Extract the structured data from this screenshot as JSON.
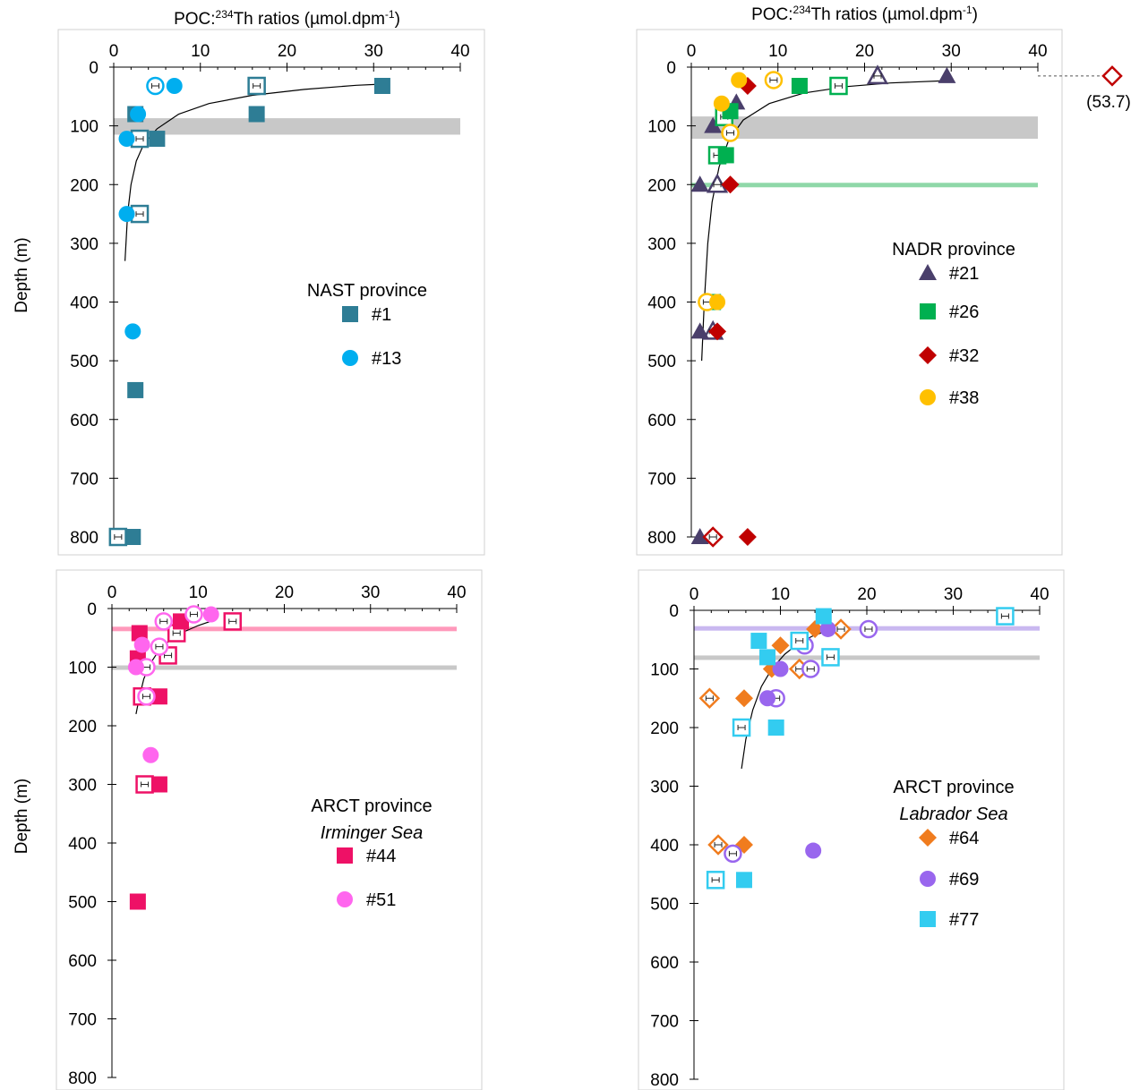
{
  "shared": {
    "ylabel": "Depth (m)",
    "xlabel_main": "POC:",
    "xlabel_sup": "234",
    "xlabel_rest": "Th  ratios (µmol.dpm",
    "xlabel_sup2": "-1",
    "xlabel_end": ")"
  },
  "chart_data": [
    {
      "type": "scatter",
      "id": "nast",
      "title_lines": [
        "NAST province"
      ],
      "show_xlabel": true,
      "show_ylabel": true,
      "xlim": [
        0,
        40
      ],
      "ylim": [
        800,
        0
      ],
      "x_ticks": [
        0,
        10,
        20,
        30,
        40
      ],
      "y_ticks": [
        0,
        100,
        200,
        300,
        400,
        500,
        600,
        700,
        800
      ],
      "bands": [
        {
          "from": 87,
          "to": 115,
          "color": "#c8c8c8"
        }
      ],
      "fit": [
        [
          1.3,
          330
        ],
        [
          1.6,
          250
        ],
        [
          2.0,
          200
        ],
        [
          2.6,
          160
        ],
        [
          3.5,
          130
        ],
        [
          5,
          105
        ],
        [
          7.5,
          80
        ],
        [
          11,
          62
        ],
        [
          16,
          48
        ],
        [
          22,
          38
        ],
        [
          28,
          31
        ],
        [
          31,
          29
        ]
      ],
      "series": [
        {
          "name": "#1",
          "marker": "square",
          "color": "#2e7d95",
          "filled": [
            [
              31,
              32
            ],
            [
              16.5,
              80
            ],
            [
              2.5,
              80
            ],
            [
              5,
              122
            ],
            [
              2.5,
              550
            ],
            [
              2.2,
              800
            ]
          ],
          "open": [
            [
              16.5,
              32
            ],
            [
              3,
              122
            ],
            [
              3,
              250
            ],
            [
              0.5,
              800
            ]
          ]
        },
        {
          "name": "#13",
          "marker": "circle",
          "color": "#00aeef",
          "filled": [
            [
              7,
              32
            ],
            [
              2.8,
              80
            ],
            [
              1.5,
              122
            ],
            [
              1.5,
              250
            ],
            [
              2.2,
              450
            ]
          ],
          "open": [
            [
              4.8,
              32
            ]
          ]
        }
      ]
    },
    {
      "type": "scatter",
      "id": "nadr",
      "title_lines": [
        "NADR province"
      ],
      "show_xlabel": true,
      "show_ylabel": false,
      "xlim": [
        0,
        40
      ],
      "ylim": [
        800,
        0
      ],
      "x_ticks": [
        0,
        10,
        20,
        30,
        40
      ],
      "y_ticks": [
        0,
        100,
        200,
        300,
        400,
        500,
        600,
        700,
        800
      ],
      "bands": [
        {
          "from": 84,
          "to": 122,
          "color": "#c8c8c8"
        },
        {
          "from": 197,
          "to": 203,
          "color": "#8fd8a8"
        }
      ],
      "fit": [
        [
          1.2,
          500
        ],
        [
          1.5,
          400
        ],
        [
          1.9,
          300
        ],
        [
          2.4,
          230
        ],
        [
          3.2,
          170
        ],
        [
          4.3,
          125
        ],
        [
          6,
          90
        ],
        [
          9,
          62
        ],
        [
          13,
          44
        ],
        [
          18,
          33
        ],
        [
          23,
          27
        ],
        [
          29.5,
          23
        ]
      ],
      "outlier": {
        "label": "(53.7)",
        "y": 15,
        "color": "#c00000"
      },
      "series": [
        {
          "name": "#21",
          "marker": "triangle",
          "color": "#4a3f6b",
          "filled": [
            [
              29.5,
              15
            ],
            [
              5.2,
              60
            ],
            [
              2.5,
              100
            ],
            [
              1,
              200
            ],
            [
              1,
              450
            ],
            [
              1,
              800
            ]
          ],
          "open": [
            [
              21.5,
              15
            ],
            [
              3,
              200
            ],
            [
              2.5,
              450
            ]
          ]
        },
        {
          "name": "#26",
          "marker": "square",
          "color": "#00b050",
          "filled": [
            [
              12.5,
              32
            ],
            [
              4.5,
              75
            ],
            [
              4,
              150
            ],
            [
              2.5,
              400
            ]
          ],
          "open": [
            [
              17,
              32
            ],
            [
              3.8,
              85
            ],
            [
              3,
              150
            ]
          ]
        },
        {
          "name": "#32",
          "marker": "diamond",
          "color": "#c00000",
          "filled": [
            [
              6.5,
              32
            ],
            [
              4.5,
              200
            ],
            [
              3,
              450
            ],
            [
              6.5,
              800
            ]
          ],
          "open": [
            [
              2.5,
              800
            ]
          ]
        },
        {
          "name": "#38",
          "marker": "circle",
          "color": "#ffc000",
          "filled": [
            [
              5.5,
              22
            ],
            [
              3.5,
              62
            ],
            [
              3,
              400
            ]
          ],
          "open": [
            [
              9.5,
              22
            ],
            [
              4.5,
              112
            ],
            [
              1.8,
              400
            ]
          ]
        }
      ]
    },
    {
      "type": "scatter",
      "id": "irminger",
      "title_lines": [
        "ARCT province",
        "Irminger Sea"
      ],
      "show_xlabel": false,
      "show_ylabel": true,
      "xlim": [
        0,
        40
      ],
      "ylim": [
        800,
        0
      ],
      "x_ticks": [
        0,
        10,
        20,
        30,
        40
      ],
      "y_ticks": [
        0,
        100,
        200,
        300,
        400,
        500,
        600,
        700,
        800
      ],
      "bands": [
        {
          "from": 31,
          "to": 37,
          "color": "#ff99bb"
        },
        {
          "from": 97,
          "to": 103,
          "color": "#c8c8c8"
        }
      ],
      "fit": [
        [
          2.8,
          180
        ],
        [
          3.2,
          150
        ],
        [
          3.7,
          120
        ],
        [
          4.4,
          95
        ],
        [
          5.3,
          75
        ],
        [
          6.5,
          57
        ],
        [
          8,
          42
        ],
        [
          10,
          29
        ],
        [
          12,
          19
        ]
      ],
      "series": [
        {
          "name": "#44",
          "marker": "square",
          "color": "#ee1166",
          "filled": [
            [
              8,
              22
            ],
            [
              3.2,
              42
            ],
            [
              3,
              85
            ],
            [
              5.5,
              150
            ],
            [
              5.5,
              300
            ],
            [
              3,
              500
            ]
          ],
          "open": [
            [
              14,
              22
            ],
            [
              7.5,
              42
            ],
            [
              6.5,
              80
            ],
            [
              3.5,
              150
            ],
            [
              3.8,
              300
            ]
          ]
        },
        {
          "name": "#51",
          "marker": "circle",
          "color": "#ff66ee",
          "filled": [
            [
              11.5,
              10
            ],
            [
              3.5,
              62
            ],
            [
              2.8,
              100
            ],
            [
              4.5,
              250
            ]
          ],
          "open": [
            [
              9.5,
              10
            ],
            [
              6,
              22
            ],
            [
              5.5,
              65
            ],
            [
              4,
              100
            ],
            [
              4,
              150
            ]
          ]
        }
      ]
    },
    {
      "type": "scatter",
      "id": "labrador",
      "title_lines": [
        "ARCT province",
        "Labrador Sea"
      ],
      "show_xlabel": false,
      "show_ylabel": false,
      "xlim": [
        0,
        40
      ],
      "ylim": [
        800,
        0
      ],
      "x_ticks": [
        0,
        10,
        20,
        30,
        40
      ],
      "y_ticks": [
        0,
        100,
        200,
        300,
        400,
        500,
        600,
        700,
        800
      ],
      "bands": [
        {
          "from": 27,
          "to": 33,
          "color": "#c9b8f0"
        },
        {
          "from": 77,
          "to": 83,
          "color": "#c8c8c8"
        }
      ],
      "fit": [
        [
          5.5,
          270
        ],
        [
          6,
          220
        ],
        [
          6.8,
          170
        ],
        [
          7.8,
          130
        ],
        [
          9,
          100
        ],
        [
          10.5,
          75
        ],
        [
          12.2,
          55
        ],
        [
          14,
          42
        ],
        [
          15.5,
          35
        ]
      ],
      "series": [
        {
          "name": "#64",
          "marker": "diamond",
          "color": "#f07c1e",
          "filled": [
            [
              14,
              32
            ],
            [
              10,
              60
            ],
            [
              9,
              100
            ],
            [
              5.8,
              150
            ],
            [
              5.8,
              400
            ]
          ],
          "open": [
            [
              17,
              32
            ],
            [
              12.2,
              100
            ],
            [
              1.8,
              150
            ],
            [
              2.8,
              400
            ]
          ]
        },
        {
          "name": "#69",
          "marker": "circle",
          "color": "#9966ee",
          "filled": [
            [
              15.5,
              32
            ],
            [
              10,
              100
            ],
            [
              8.5,
              150
            ],
            [
              13.8,
              410
            ]
          ],
          "open": [
            [
              20.2,
              32
            ],
            [
              12.8,
              60
            ],
            [
              13.5,
              100
            ],
            [
              9.5,
              150
            ],
            [
              4.5,
              415
            ]
          ]
        },
        {
          "name": "#77",
          "marker": "square",
          "color": "#33ccf0",
          "filled": [
            [
              15,
              10
            ],
            [
              7.5,
              52
            ],
            [
              8.5,
              80
            ],
            [
              9.5,
              200
            ],
            [
              5.8,
              460
            ]
          ],
          "open": [
            [
              36,
              10
            ],
            [
              12.2,
              52
            ],
            [
              15.8,
              80
            ],
            [
              5.5,
              200
            ],
            [
              2.5,
              460
            ]
          ]
        }
      ]
    }
  ]
}
